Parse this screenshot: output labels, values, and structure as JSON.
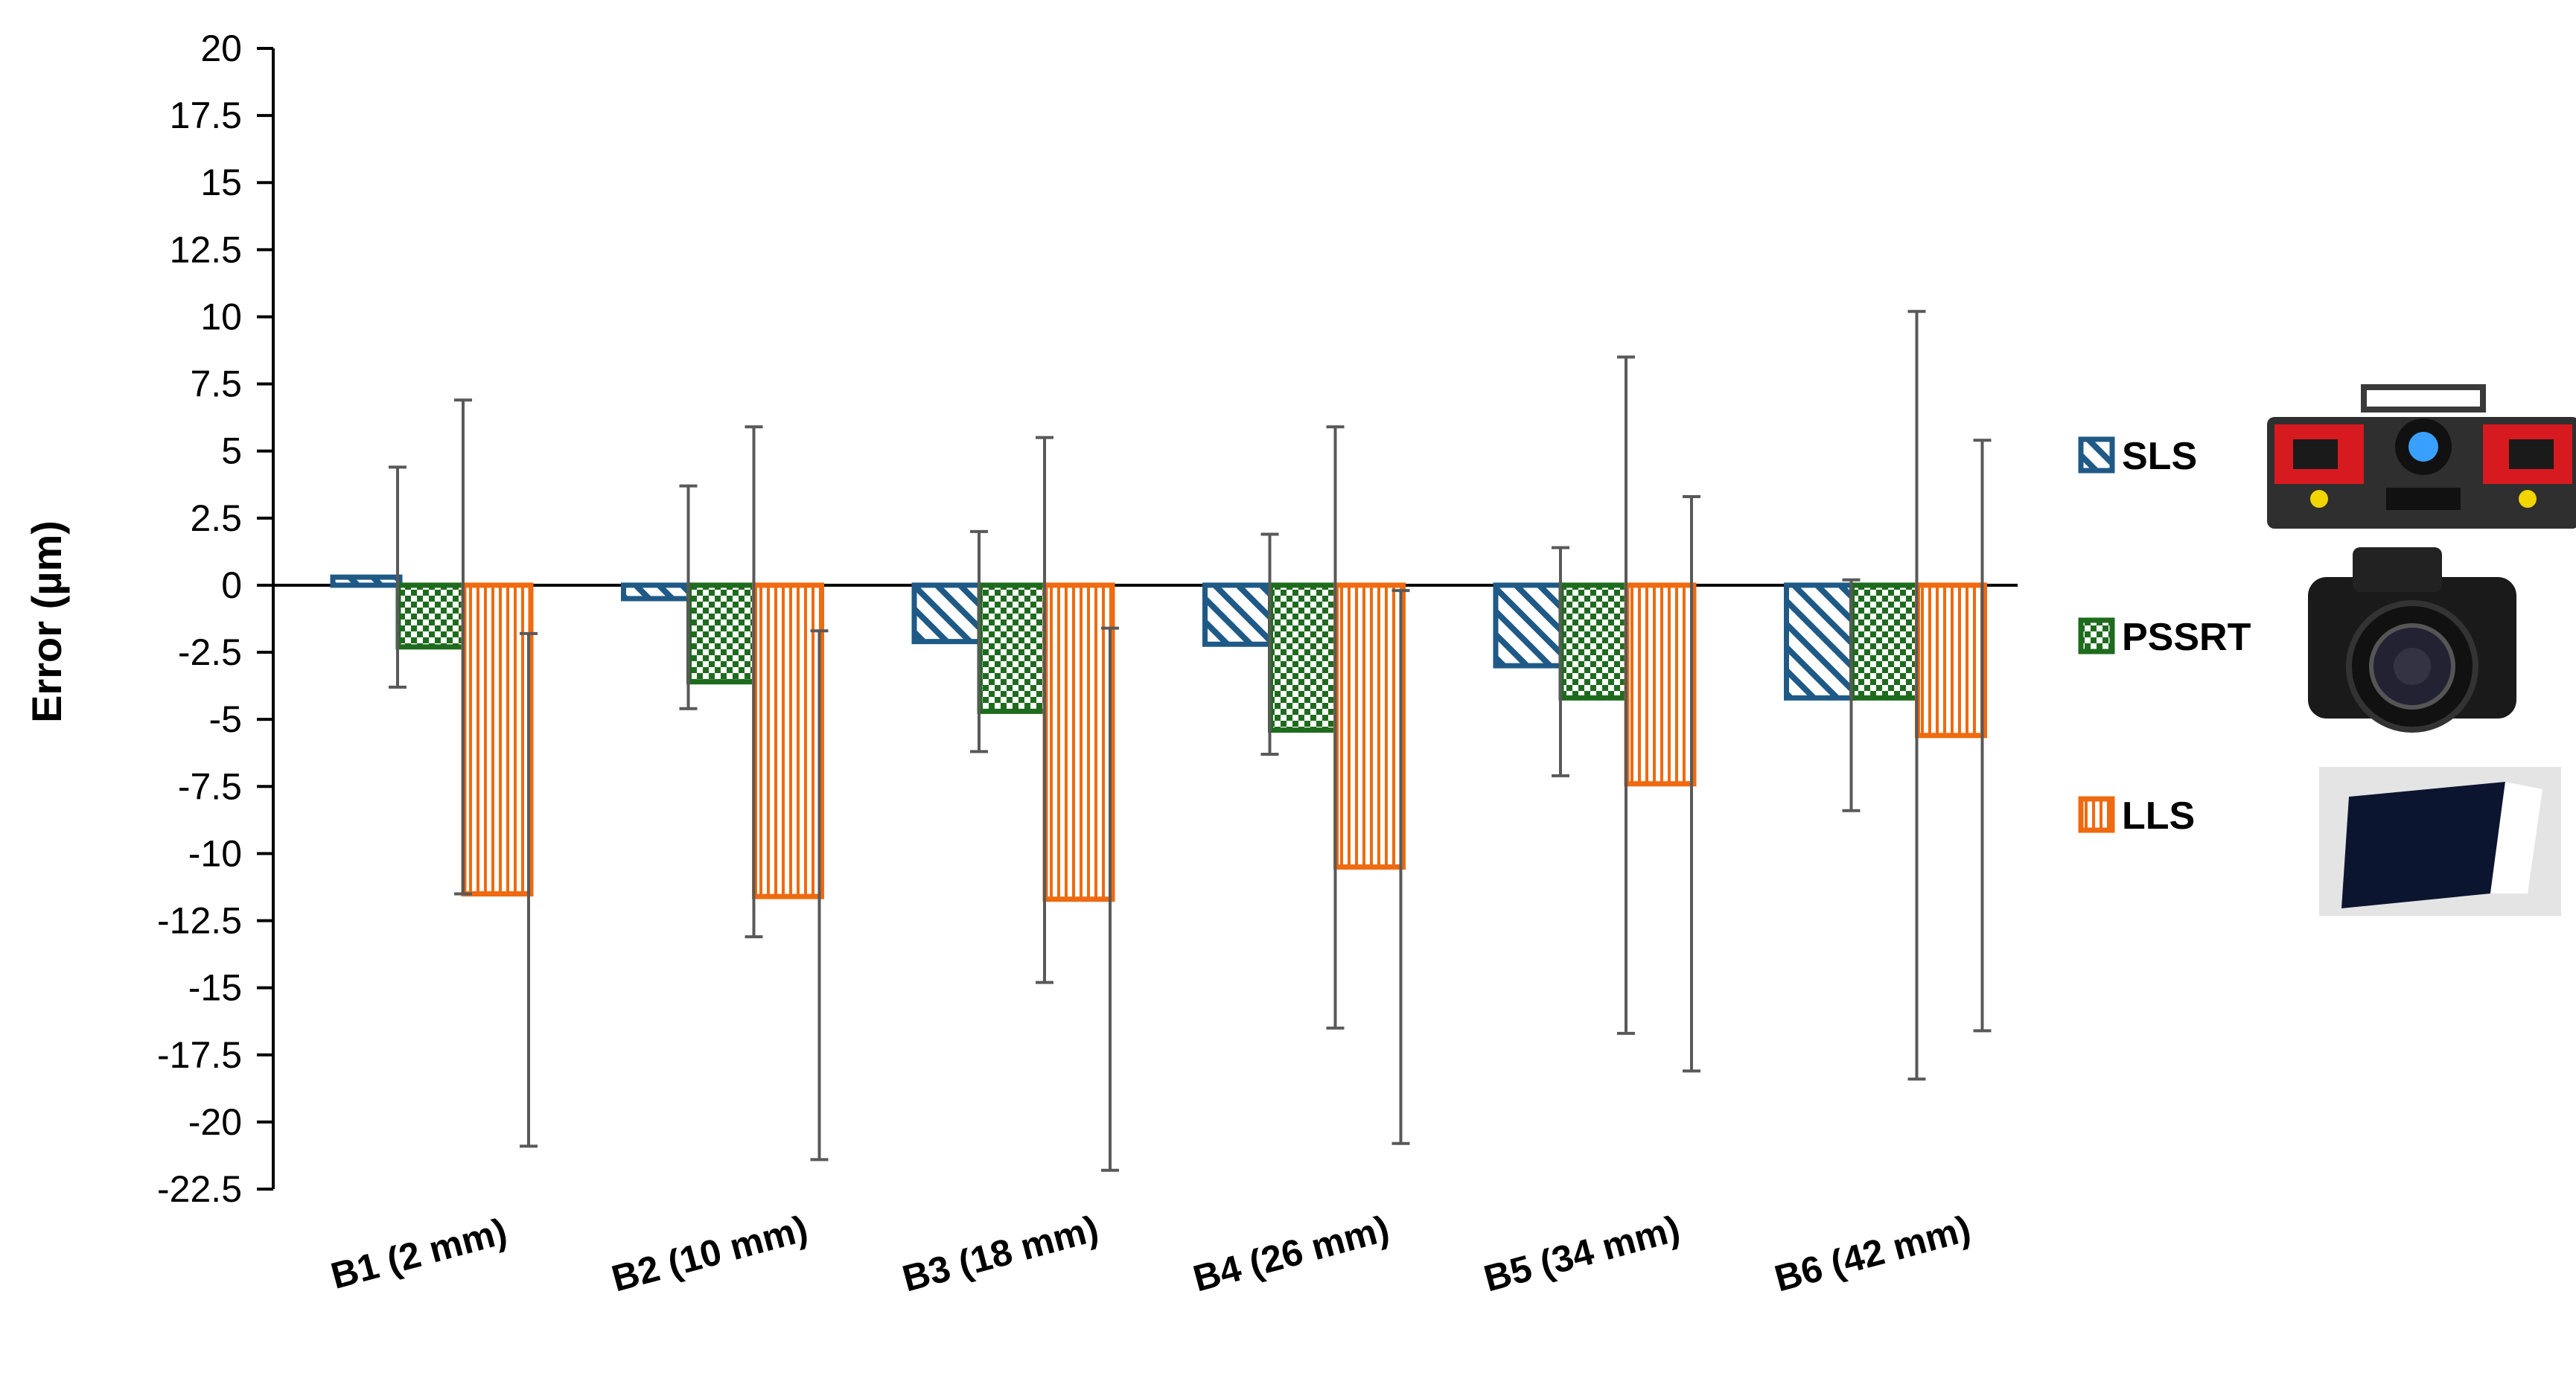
{
  "chart_data": {
    "type": "bar",
    "title": "",
    "xlabel": "",
    "ylabel": "Error (µm)",
    "ylim": [
      -22.5,
      20
    ],
    "yticks": [
      20,
      17.5,
      15,
      12.5,
      10,
      7.5,
      5,
      2.5,
      0,
      -2.5,
      -5,
      -7.5,
      -10,
      -12.5,
      -15,
      -17.5,
      -20,
      -22.5
    ],
    "ytick_labels": [
      "20",
      "17.5",
      "15",
      "12.5",
      "10",
      "7.5",
      "5",
      "2.5",
      "0",
      "-2.5",
      "-5",
      "-7.5",
      "-10",
      "-12.5",
      "-15",
      "-17.5",
      "-20",
      "-22.5"
    ],
    "categories": [
      "B1 (2 mm)",
      "B2 (10 mm)",
      "B3 (18 mm)",
      "B4 (26 mm)",
      "B5 (34 mm)",
      "B6 (42 mm)"
    ],
    "grid": false,
    "legend_position": "right",
    "series": [
      {
        "name": "SLS",
        "pattern": "diagonal-hatch",
        "color": "#1f5a87",
        "values": [
          0.3,
          -0.5,
          -2.1,
          -2.2,
          -3.0,
          -4.2
        ],
        "err_low": [
          -3.8,
          -4.6,
          -6.2,
          -6.3,
          -7.1,
          -8.4
        ],
        "err_high": [
          4.4,
          3.7,
          2.0,
          1.9,
          1.4,
          0.2
        ]
      },
      {
        "name": "PSSRT",
        "pattern": "checkerboard",
        "color": "#1e6b1e",
        "values": [
          -2.3,
          -3.6,
          -4.7,
          -5.4,
          -4.2,
          -4.2
        ],
        "err_low": [
          -11.5,
          -13.1,
          -14.8,
          -16.5,
          -16.7,
          -18.4
        ],
        "err_high": [
          6.9,
          5.9,
          5.5,
          5.9,
          8.5,
          10.2
        ]
      },
      {
        "name": "LLS",
        "pattern": "vertical-lines",
        "color": "#ef6a10",
        "values": [
          -11.5,
          -11.6,
          -11.7,
          -10.5,
          -7.4,
          -5.6
        ],
        "err_low": [
          -20.9,
          -21.4,
          -21.8,
          -20.8,
          -18.1,
          -16.6
        ],
        "err_high": [
          -1.8,
          -1.7,
          -1.6,
          -0.2,
          3.3,
          5.4
        ]
      }
    ]
  }
}
